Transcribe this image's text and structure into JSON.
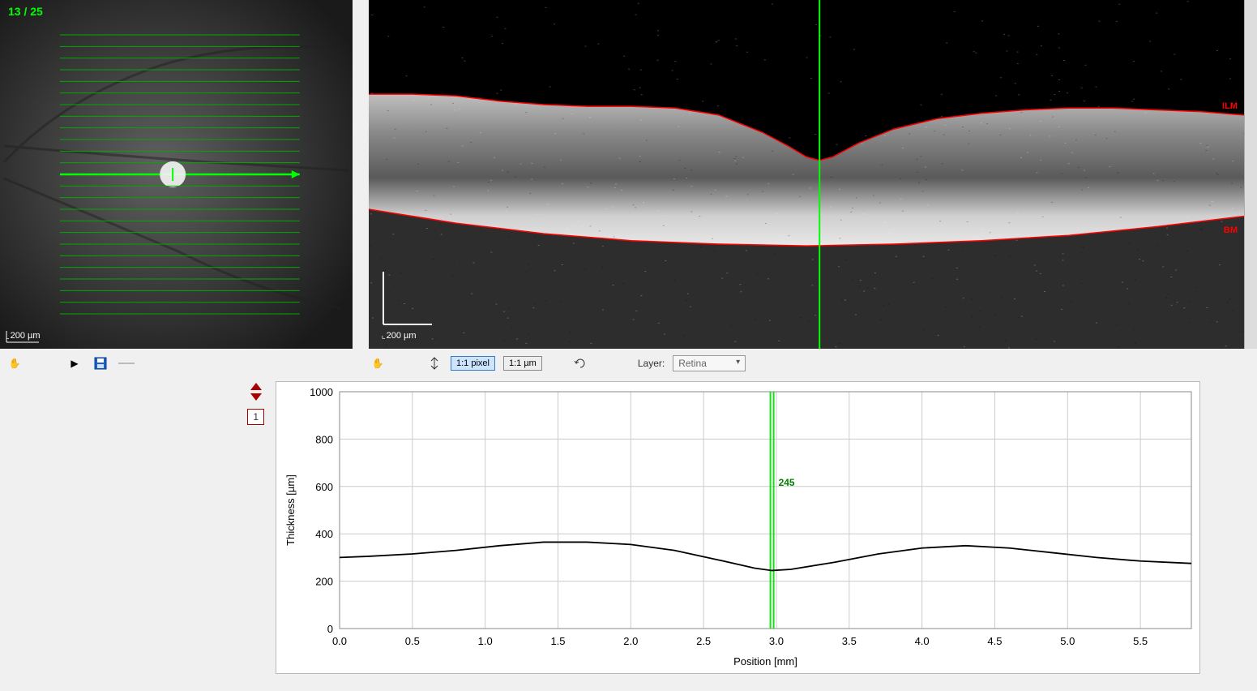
{
  "fundus": {
    "slice_counter": "13 / 25",
    "scale_label": "200 µm",
    "total_lines": 25,
    "active_line": 13,
    "line_color": "#00aa00",
    "active_line_color": "#00ff00",
    "bg_gradient_inner": "#606060",
    "bg_gradient_outer": "#1a1a1a",
    "marker_x": 0.49,
    "scan_x0": 0.17,
    "scan_x1": 0.85,
    "scan_y0": 0.1,
    "scan_y1": 0.9
  },
  "oct": {
    "ilm_label": "ILM",
    "bm_label": "BM",
    "scale_label": "200 µm",
    "marker_x": 0.515,
    "marker_color": "#00ff00",
    "layer_color": "#ff0000",
    "ilm_points": [
      [
        0.0,
        0.27
      ],
      [
        0.05,
        0.27
      ],
      [
        0.1,
        0.275
      ],
      [
        0.15,
        0.29
      ],
      [
        0.2,
        0.3
      ],
      [
        0.25,
        0.305
      ],
      [
        0.3,
        0.305
      ],
      [
        0.35,
        0.31
      ],
      [
        0.4,
        0.33
      ],
      [
        0.45,
        0.38
      ],
      [
        0.48,
        0.42
      ],
      [
        0.5,
        0.45
      ],
      [
        0.515,
        0.46
      ],
      [
        0.53,
        0.45
      ],
      [
        0.56,
        0.41
      ],
      [
        0.6,
        0.37
      ],
      [
        0.65,
        0.34
      ],
      [
        0.7,
        0.325
      ],
      [
        0.75,
        0.315
      ],
      [
        0.8,
        0.31
      ],
      [
        0.85,
        0.31
      ],
      [
        0.9,
        0.315
      ],
      [
        0.95,
        0.32
      ],
      [
        1.0,
        0.33
      ]
    ],
    "bm_points": [
      [
        0.0,
        0.6
      ],
      [
        0.1,
        0.64
      ],
      [
        0.2,
        0.67
      ],
      [
        0.3,
        0.69
      ],
      [
        0.4,
        0.7
      ],
      [
        0.5,
        0.705
      ],
      [
        0.6,
        0.7
      ],
      [
        0.7,
        0.69
      ],
      [
        0.8,
        0.675
      ],
      [
        0.9,
        0.65
      ],
      [
        1.0,
        0.62
      ]
    ]
  },
  "toolbar": {
    "scale_pixel": "1:1 pixel",
    "scale_um": "1:1 µm",
    "layer_label": "Layer:",
    "layer_value": "Retina"
  },
  "profile": {
    "number": "1",
    "marker_value": "245"
  },
  "chart": {
    "type": "line",
    "y_label": "Thickness [µm]",
    "x_label": "Position [mm]",
    "y_ticks": [
      0,
      200,
      400,
      600,
      800,
      1000
    ],
    "y_max": 1000,
    "x_ticks": [
      0.0,
      0.5,
      1.0,
      1.5,
      2.0,
      2.5,
      3.0,
      3.5,
      4.0,
      4.5,
      5.0,
      5.5
    ],
    "x_max": 5.85,
    "marker_x": 2.97,
    "marker_color": "#00dd00",
    "grid_color": "#cccccc",
    "line_color": "#000000",
    "bg_color": "#ffffff",
    "series": [
      [
        0.0,
        300
      ],
      [
        0.2,
        305
      ],
      [
        0.5,
        315
      ],
      [
        0.8,
        330
      ],
      [
        1.1,
        350
      ],
      [
        1.4,
        365
      ],
      [
        1.7,
        365
      ],
      [
        2.0,
        355
      ],
      [
        2.3,
        330
      ],
      [
        2.6,
        290
      ],
      [
        2.85,
        255
      ],
      [
        2.97,
        245
      ],
      [
        3.1,
        250
      ],
      [
        3.4,
        280
      ],
      [
        3.7,
        315
      ],
      [
        4.0,
        340
      ],
      [
        4.3,
        350
      ],
      [
        4.6,
        340
      ],
      [
        4.9,
        320
      ],
      [
        5.2,
        300
      ],
      [
        5.5,
        285
      ],
      [
        5.85,
        275
      ]
    ]
  }
}
